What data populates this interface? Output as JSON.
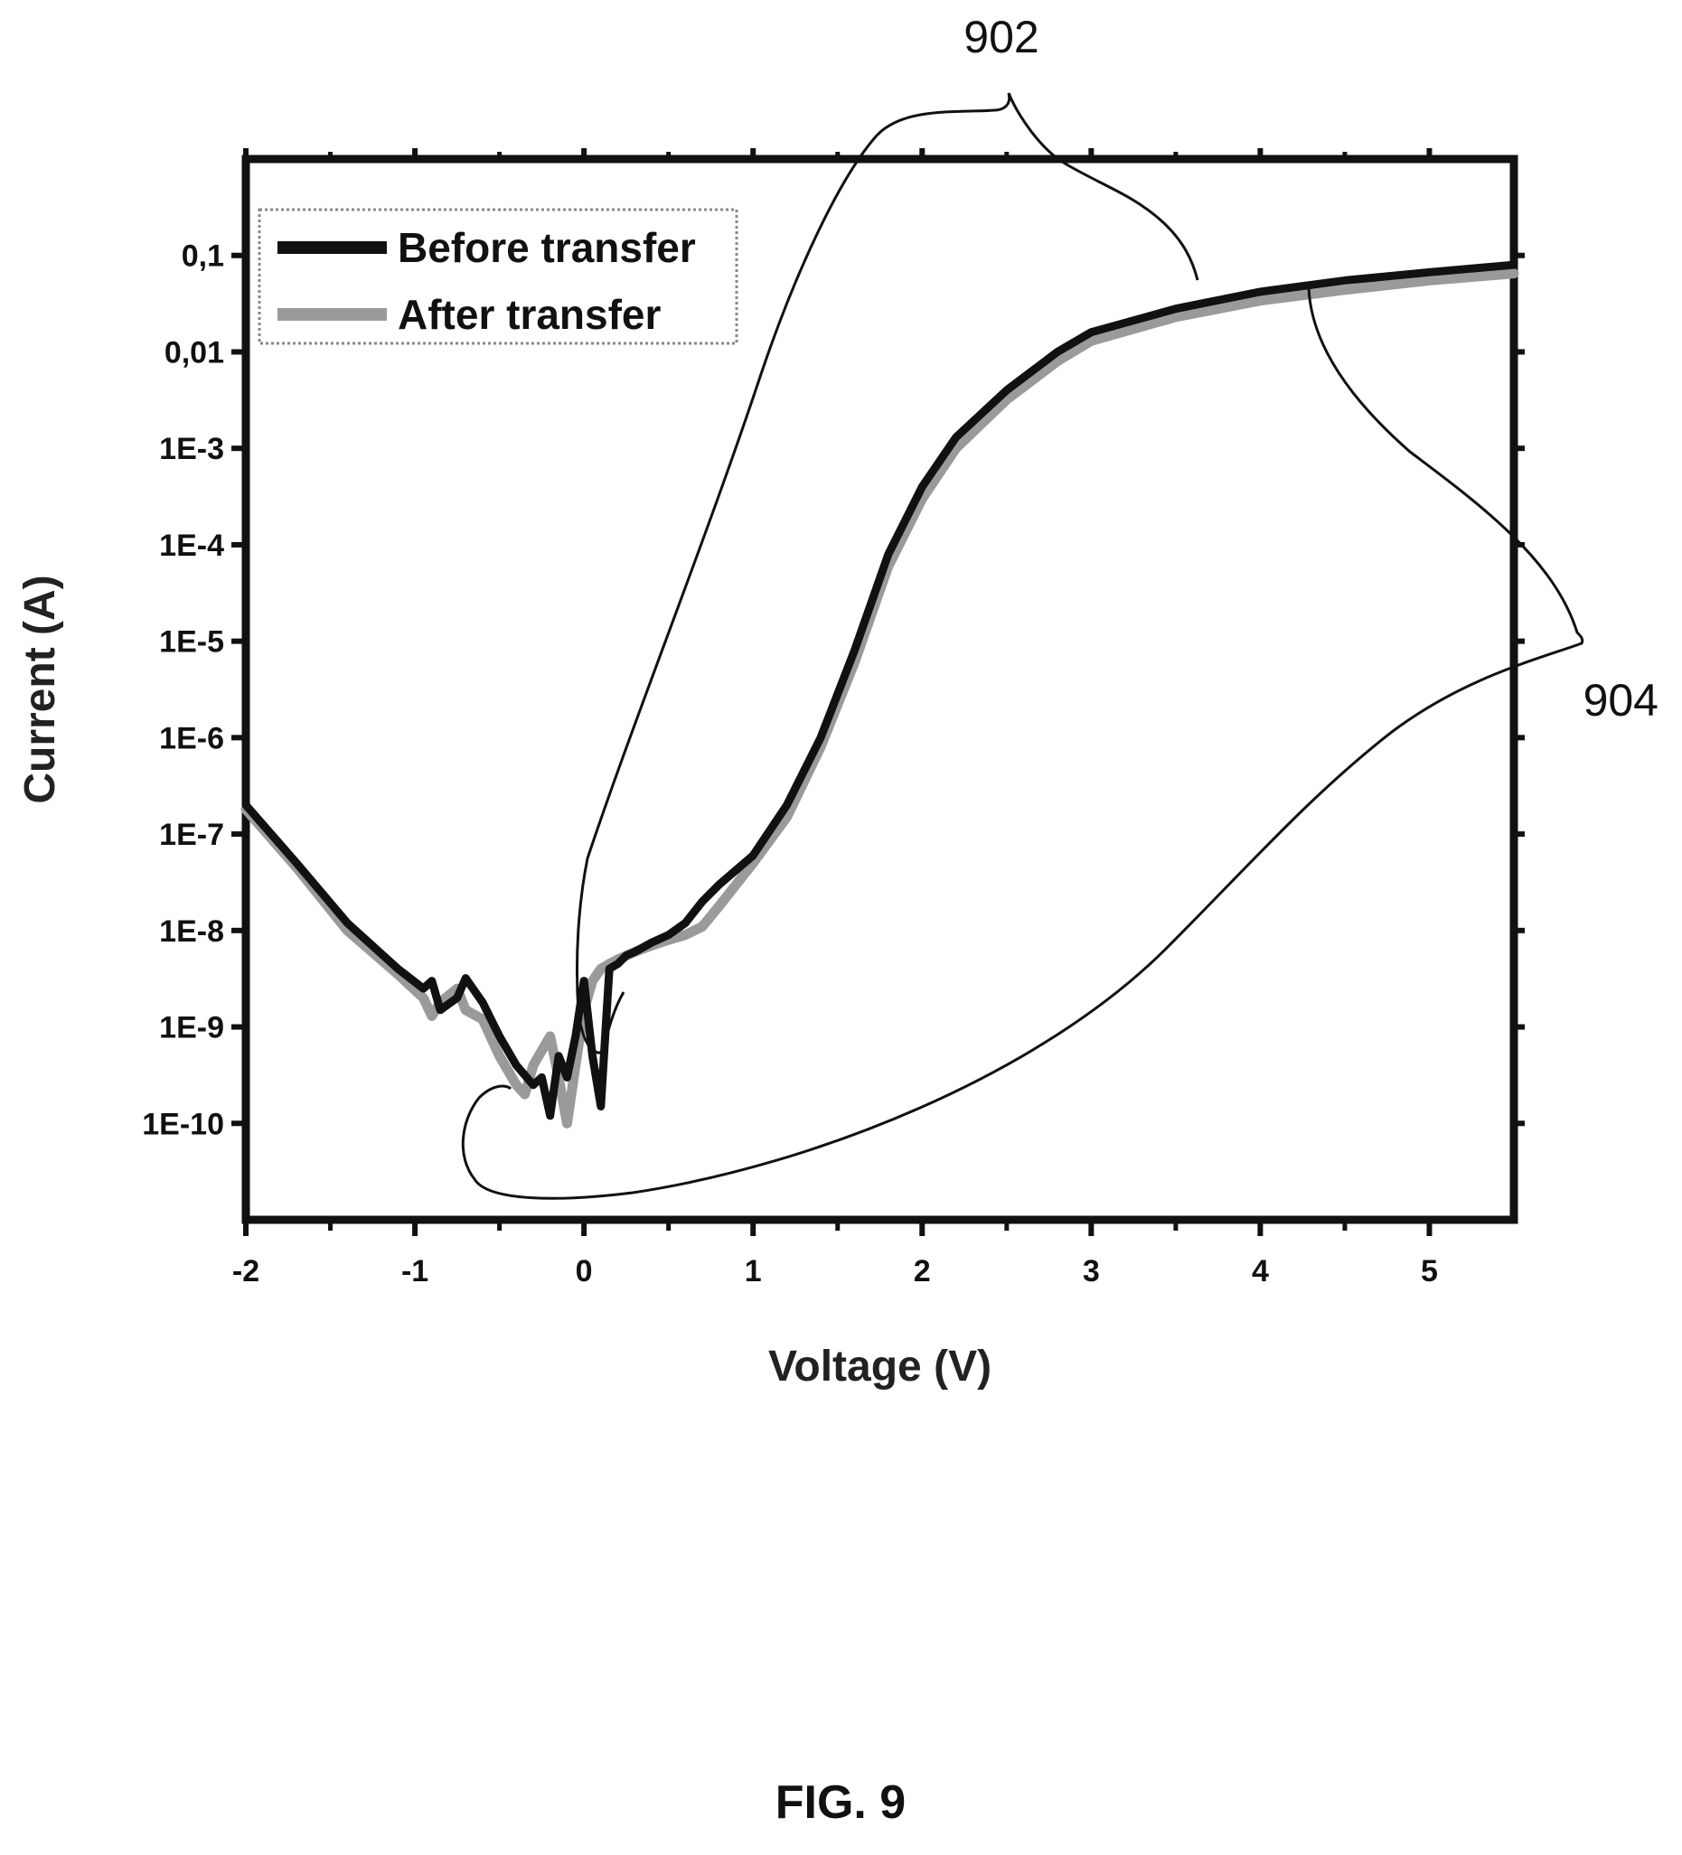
{
  "figure_caption": "FIG. 9",
  "reference_labels": {
    "upper": "902",
    "lower": "904"
  },
  "colors": {
    "before": "#111111",
    "after": "#9a9a9a",
    "frame": "#111111"
  },
  "chart_data": {
    "type": "line",
    "title": "",
    "xlabel": "Voltage (V)",
    "ylabel": "Current (A)",
    "xlim": [
      -2,
      5.5
    ],
    "ylim": [
      1e-11,
      1
    ],
    "y_scale": "log",
    "x_ticks": [
      -2,
      -1,
      0,
      1,
      2,
      3,
      4,
      5
    ],
    "x_tick_labels": [
      "-2",
      "-1",
      "0",
      "1",
      "2",
      "3",
      "4",
      "5"
    ],
    "y_ticks": [
      1e-10,
      1e-09,
      1e-08,
      1e-07,
      1e-06,
      1e-05,
      0.0001,
      0.001,
      0.01,
      0.1
    ],
    "y_tick_labels": [
      "1E-10",
      "1E-9",
      "1E-8",
      "1E-7",
      "1E-6",
      "1E-5",
      "1E-4",
      "1E-3",
      "0,01",
      "0,1"
    ],
    "legend_position": "top-left",
    "grid": false,
    "series": [
      {
        "name": "Before transfer",
        "x": [
          -2,
          -1.7,
          -1.4,
          -1.1,
          -0.95,
          -0.9,
          -0.85,
          -0.75,
          -0.7,
          -0.6,
          -0.5,
          -0.4,
          -0.3,
          -0.25,
          -0.2,
          -0.15,
          -0.1,
          -0.05,
          0,
          0.05,
          0.1,
          0.15,
          0.2,
          0.25,
          0.3,
          0.4,
          0.5,
          0.6,
          0.7,
          0.8,
          1.0,
          1.2,
          1.4,
          1.6,
          1.8,
          2.0,
          2.2,
          2.5,
          2.8,
          3.0,
          3.5,
          4.0,
          4.5,
          5.0,
          5.5
        ],
        "y": [
          2e-07,
          5e-08,
          1.2e-08,
          4e-09,
          2.5e-09,
          3e-09,
          1.5e-09,
          2e-09,
          3.2e-09,
          1.8e-09,
          8e-10,
          4e-10,
          2.5e-10,
          3e-10,
          1.2e-10,
          5e-10,
          3e-10,
          8e-10,
          3e-09,
          5e-10,
          1.5e-10,
          4e-09,
          4.5e-09,
          5.5e-09,
          6e-09,
          7.5e-09,
          9e-09,
          1.2e-08,
          2e-08,
          3e-08,
          6e-08,
          2e-07,
          1e-06,
          8e-06,
          8e-05,
          0.0004,
          0.0013,
          0.004,
          0.01,
          0.016,
          0.028,
          0.042,
          0.055,
          0.067,
          0.08
        ]
      },
      {
        "name": "After transfer",
        "x": [
          -2,
          -1.7,
          -1.4,
          -1.1,
          -0.95,
          -0.9,
          -0.85,
          -0.75,
          -0.7,
          -0.6,
          -0.5,
          -0.4,
          -0.35,
          -0.3,
          -0.2,
          -0.15,
          -0.1,
          -0.05,
          0,
          0.05,
          0.1,
          0.15,
          0.2,
          0.3,
          0.4,
          0.5,
          0.6,
          0.7,
          0.8,
          1.0,
          1.2,
          1.4,
          1.6,
          1.8,
          2.0,
          2.2,
          2.5,
          2.8,
          3.0,
          3.5,
          4.0,
          4.5,
          5.0,
          5.5
        ],
        "y": [
          1.8e-07,
          4.5e-08,
          1e-08,
          3.5e-09,
          2e-09,
          1.3e-09,
          1.8e-09,
          2.5e-09,
          1.5e-09,
          1.2e-09,
          5e-10,
          2.5e-10,
          2e-10,
          4e-10,
          8e-10,
          3e-10,
          1e-10,
          4e-10,
          1.5e-09,
          3e-09,
          4e-09,
          4.5e-09,
          5e-09,
          6e-09,
          7e-09,
          8e-09,
          9e-09,
          1.1e-08,
          1.8e-08,
          5e-08,
          1.5e-07,
          8e-07,
          6e-06,
          6e-05,
          0.0003,
          0.001,
          0.0032,
          0.008,
          0.013,
          0.023,
          0.034,
          0.044,
          0.055,
          0.065
        ]
      }
    ]
  }
}
